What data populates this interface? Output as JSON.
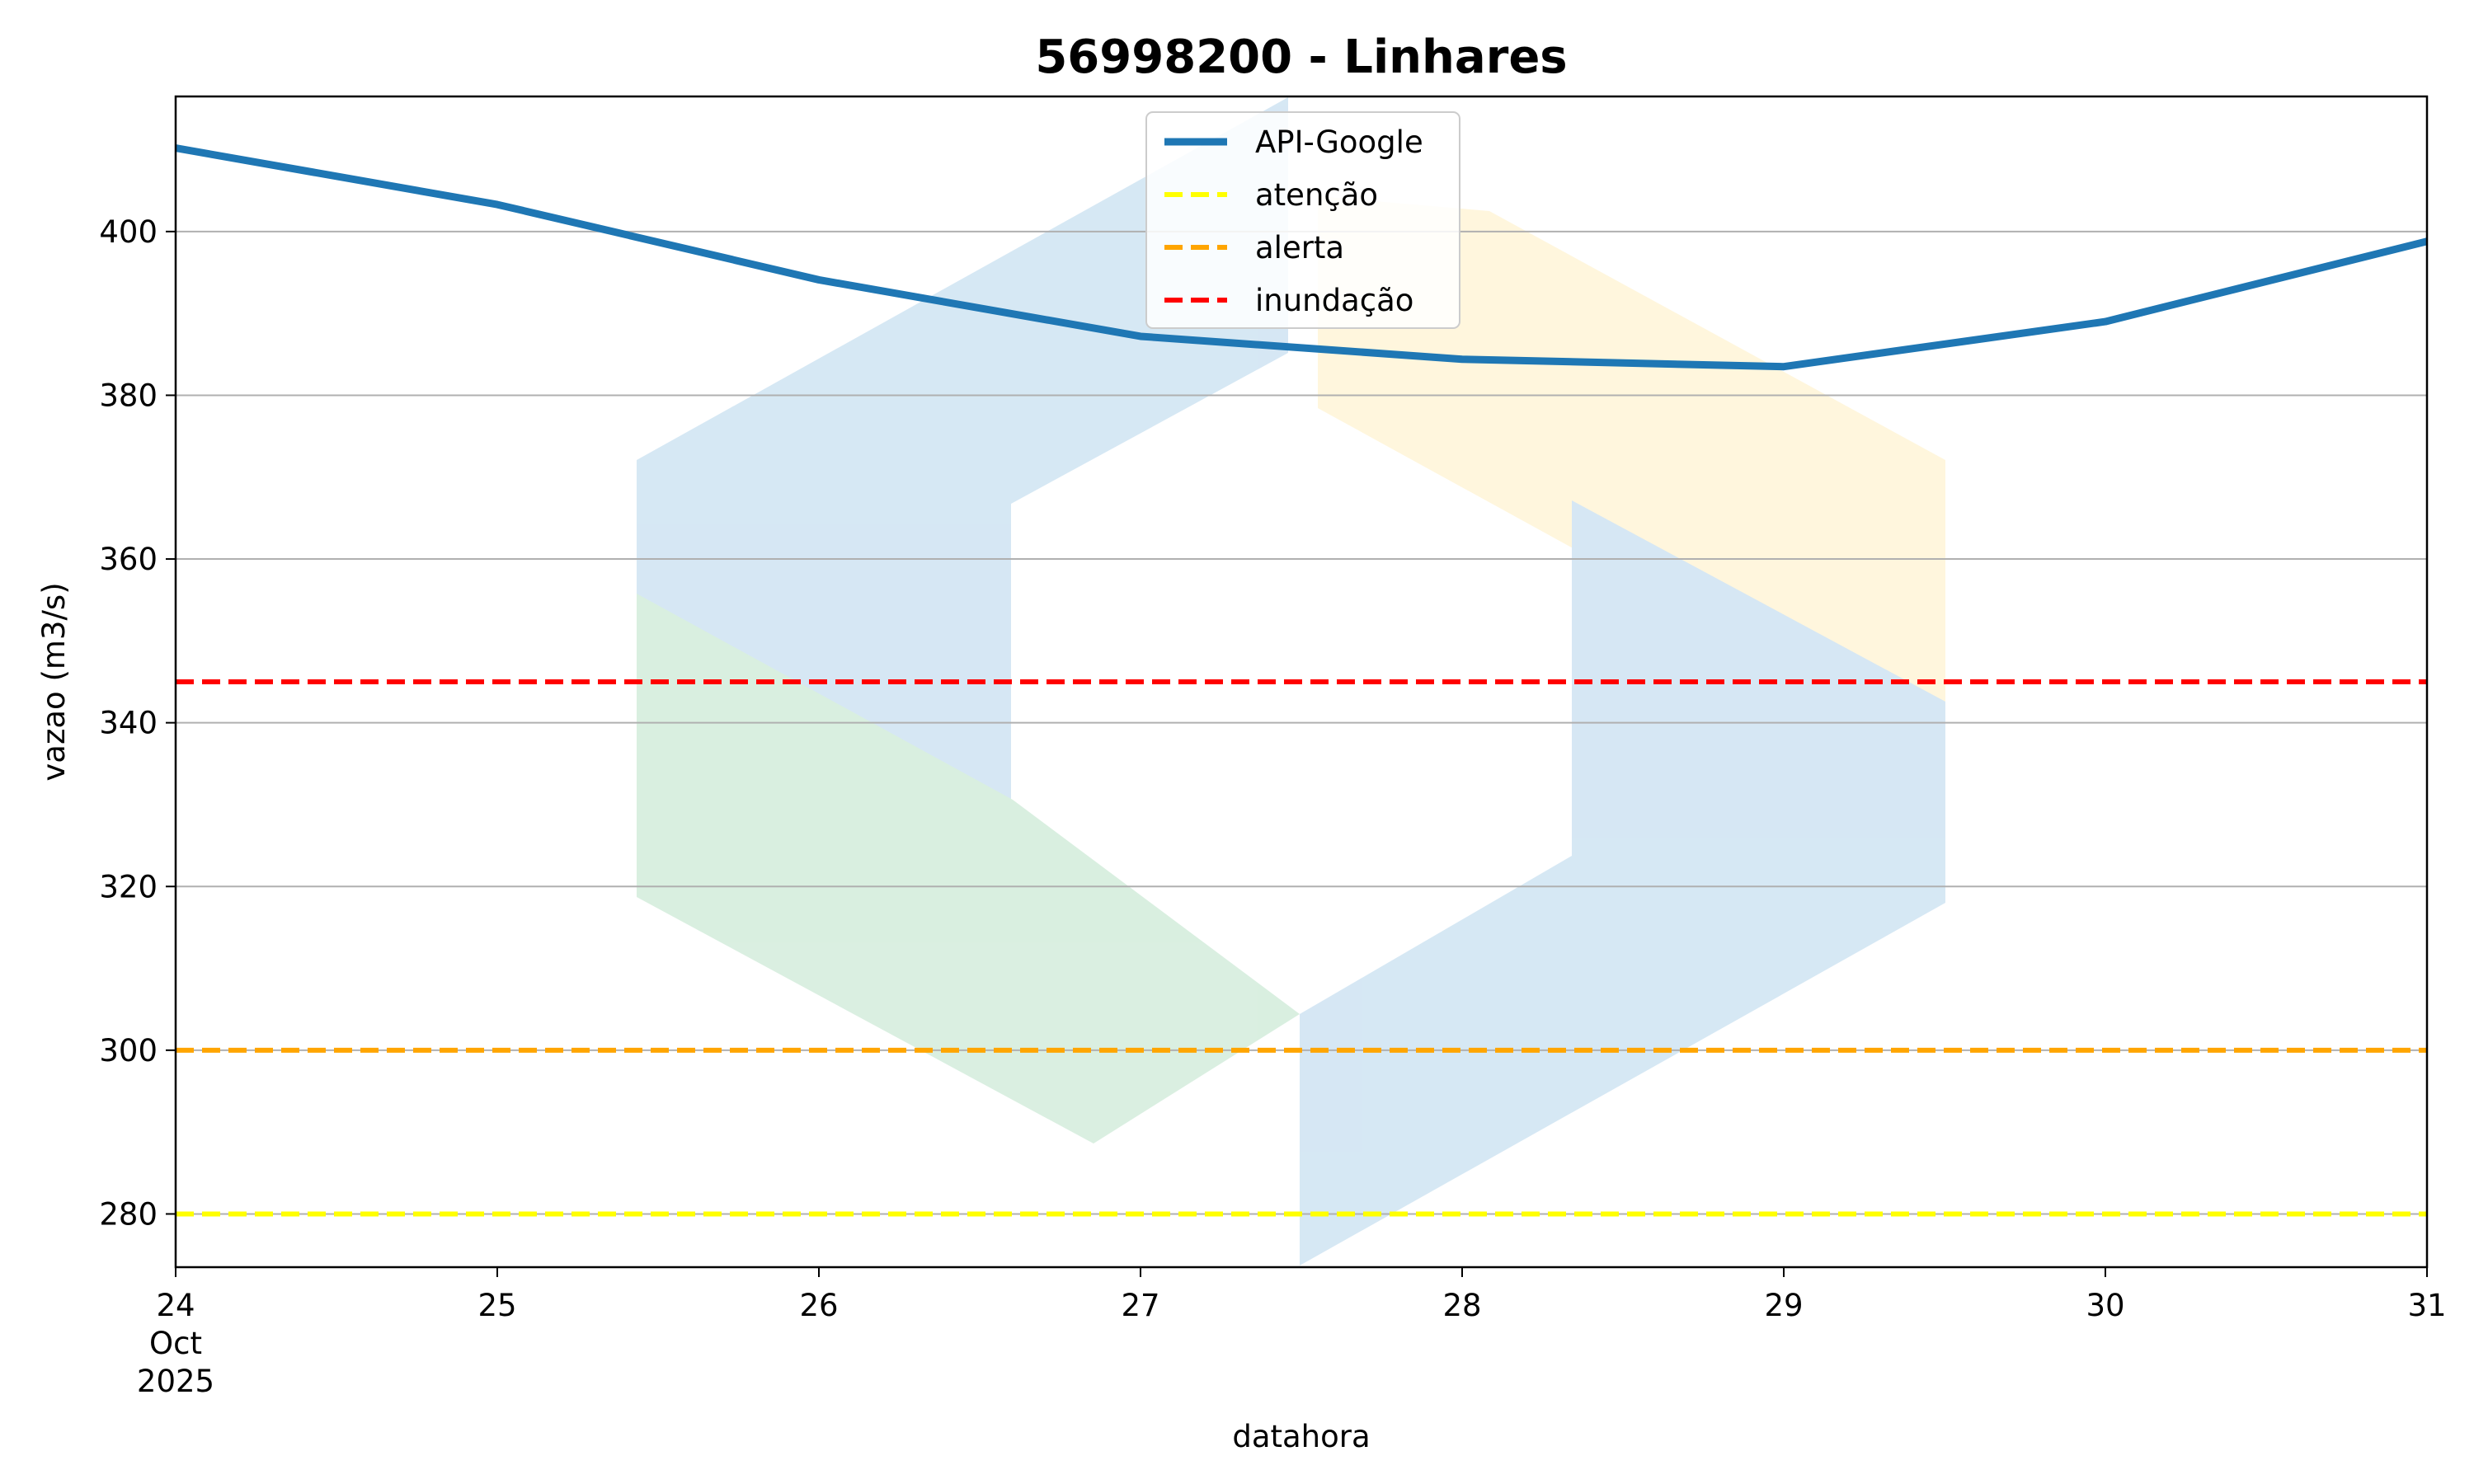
{
  "chart_data": {
    "type": "line",
    "title": "56998200 - Linhares",
    "xlabel": "datahora",
    "ylabel": "vazao (m3/s)",
    "x_tick_labels": [
      "24",
      "25",
      "26",
      "27",
      "28",
      "29",
      "30",
      "31"
    ],
    "x_tick_sublabels": [
      "Oct",
      "2025"
    ],
    "y_ticks": [
      280,
      300,
      320,
      340,
      360,
      380,
      400
    ],
    "x": [
      "2025-10-24",
      "2025-10-25",
      "2025-10-26",
      "2025-10-27",
      "2025-10-28",
      "2025-10-29",
      "2025-10-30",
      "2025-10-31"
    ],
    "xlim": [
      "2025-10-24",
      "2025-10-31"
    ],
    "ylim": [
      273.5,
      416.5
    ],
    "grid": "horizontal",
    "legend_position": "top-center",
    "series": [
      {
        "name": "API-Google",
        "style": "solid",
        "color": "#1f77b4",
        "values": [
          410.2,
          403.3,
          394.1,
          387.2,
          384.4,
          383.5,
          389.0,
          398.8
        ]
      },
      {
        "name": "atenção",
        "style": "dashed",
        "color": "#ffff00",
        "value": 280
      },
      {
        "name": "alerta",
        "style": "dashed",
        "color": "#ffa500",
        "value": 300
      },
      {
        "name": "inundação",
        "style": "dashed",
        "color": "#ff0000",
        "value": 345
      }
    ]
  }
}
